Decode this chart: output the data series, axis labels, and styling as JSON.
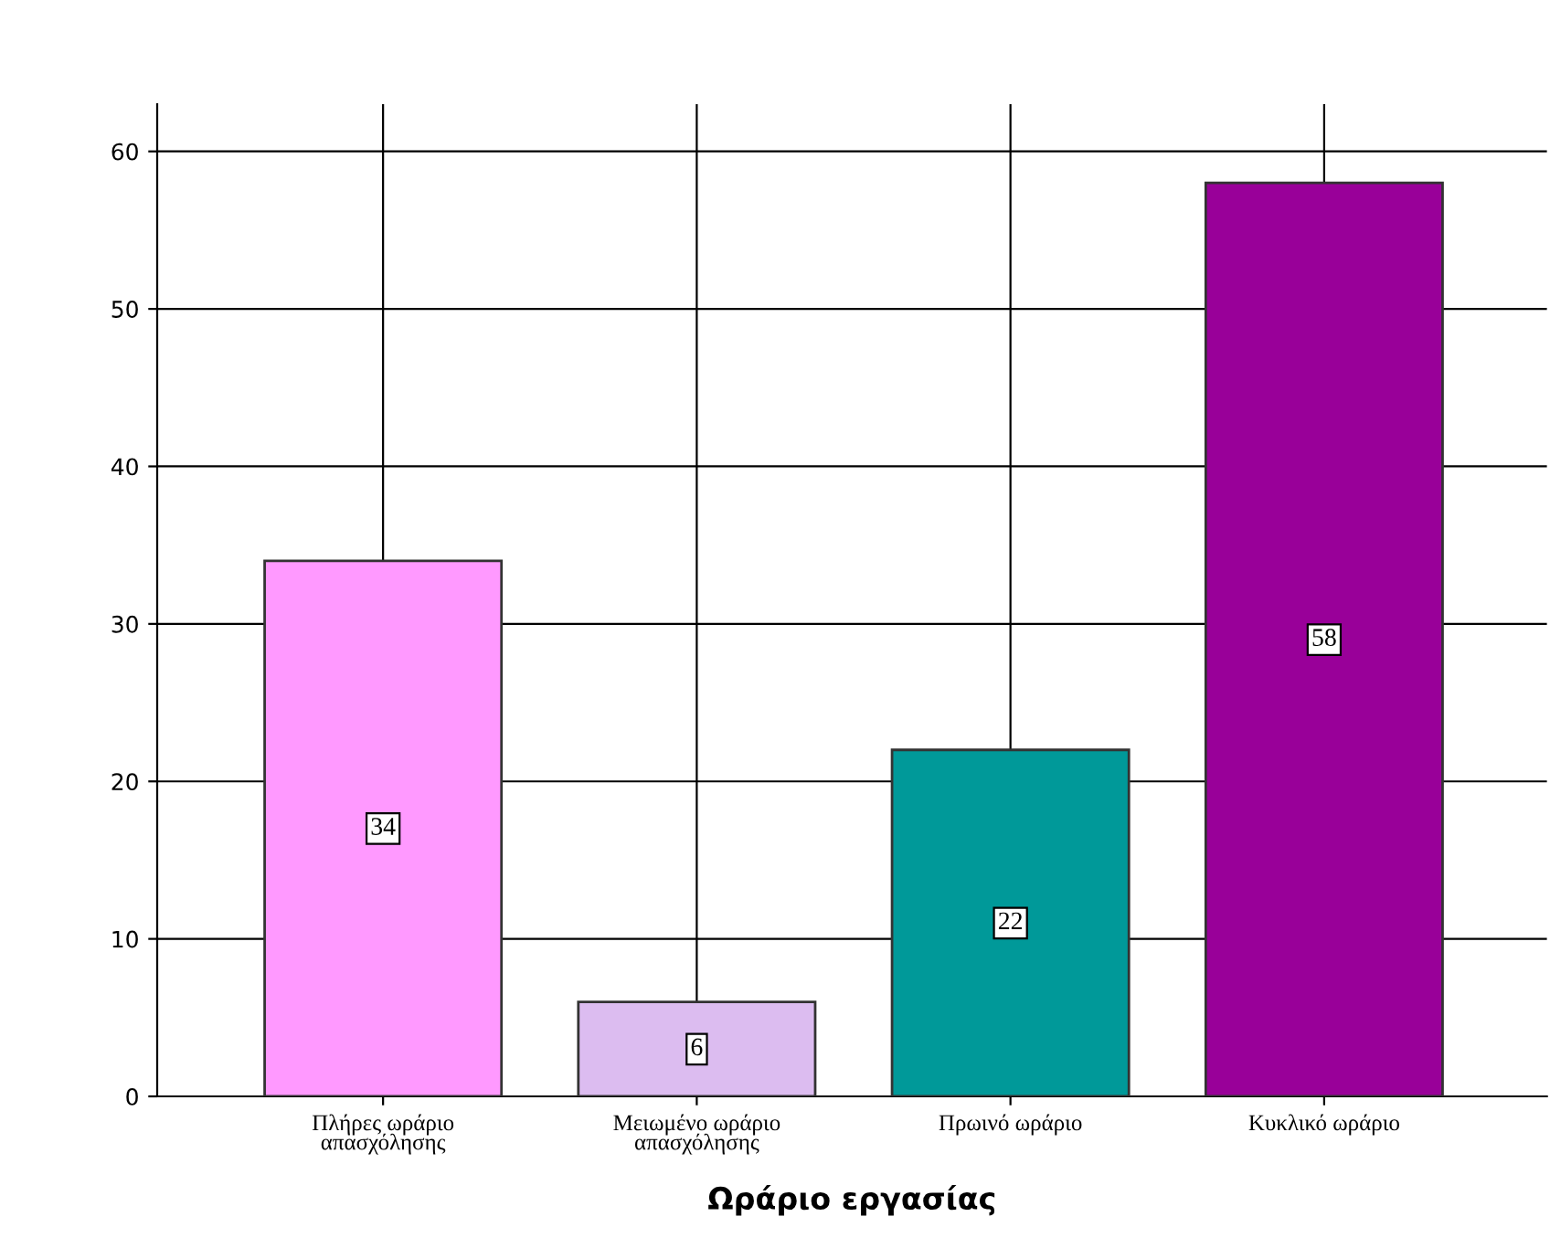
{
  "chart_data": {
    "type": "bar",
    "xlabel": "Ωράριο εργασίας",
    "categories": [
      "Πλήρες ωράριο\nαπασχόλησης",
      "Μειωμένο ωράριο\nαπασχόλησης",
      "Πρωινό ωράριο",
      "Κυκλικό ωράριο"
    ],
    "values": [
      34,
      6,
      22,
      58
    ],
    "colors": [
      "#ff99ff",
      "#dcbcf0",
      "#009999",
      "#990099"
    ],
    "ylim": [
      0,
      63
    ],
    "yticks": [
      0,
      10,
      20,
      30,
      40,
      50,
      60
    ],
    "grid": true,
    "data_labels": true
  }
}
